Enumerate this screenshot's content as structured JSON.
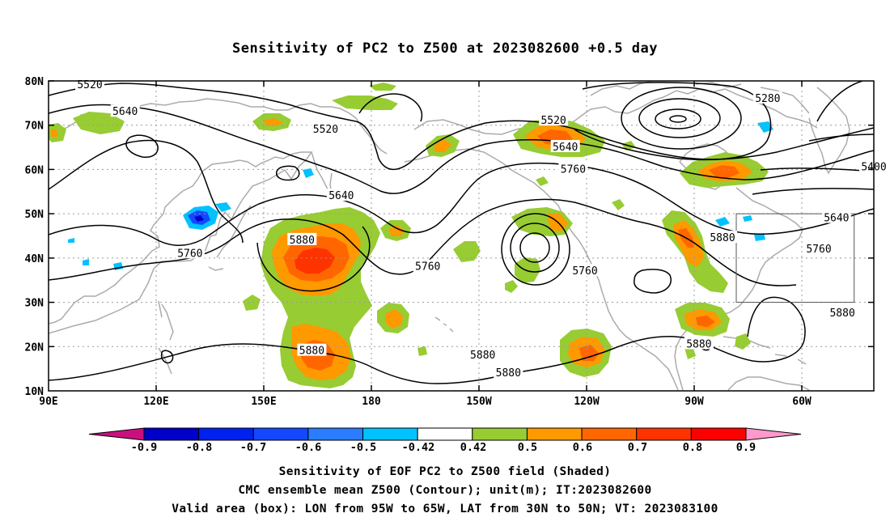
{
  "title": "Sensitivity of PC2 to Z500 at 2023082600 +0.5 day",
  "axes": {
    "lat_labels": [
      "80N",
      "70N",
      "60N",
      "50N",
      "40N",
      "30N",
      "20N",
      "10N"
    ],
    "lon_labels": [
      "90E",
      "120E",
      "150E",
      "180",
      "150W",
      "120W",
      "90W",
      "60W"
    ]
  },
  "contour_labels": [
    {
      "text": "5520",
      "lon": 100.5,
      "lat": 79.3
    },
    {
      "text": "5640",
      "lon": 109.5,
      "lat": 73.2
    },
    {
      "text": "5520",
      "lon": 160.5,
      "lat": 69.2
    },
    {
      "text": "5280",
      "lon": 273.0,
      "lat": 76.2
    },
    {
      "text": "5520",
      "lon": 218.5,
      "lat": 71.2
    },
    {
      "text": "5640",
      "lon": 221.5,
      "lat": 65.2
    },
    {
      "text": "5760",
      "lon": 223.5,
      "lat": 60.2
    },
    {
      "text": "5400",
      "lon": 300.0,
      "lat": 60.7
    },
    {
      "text": "5640",
      "lon": 164.5,
      "lat": 54.2
    },
    {
      "text": "5880",
      "lon": 154.5,
      "lat": 44.2
    },
    {
      "text": "5760",
      "lon": 126.0,
      "lat": 41.2
    },
    {
      "text": "5760",
      "lon": 186.5,
      "lat": 38.2
    },
    {
      "text": "5760",
      "lon": 226.5,
      "lat": 37.2
    },
    {
      "text": "5880",
      "lon": 261.5,
      "lat": 44.7
    },
    {
      "text": "5640",
      "lon": 290.5,
      "lat": 49.2
    },
    {
      "text": "5760",
      "lon": 286.0,
      "lat": 42.2
    },
    {
      "text": "5880",
      "lon": 292.0,
      "lat": 27.7
    },
    {
      "text": "5880",
      "lon": 255.5,
      "lat": 20.7
    },
    {
      "text": "5880",
      "lon": 200.5,
      "lat": 18.2
    },
    {
      "text": "5880",
      "lon": 207.0,
      "lat": 14.2
    },
    {
      "text": "5880",
      "lon": 157.0,
      "lat": 19.2
    }
  ],
  "colorbar": {
    "levels": [
      "-0.9",
      "-0.8",
      "-0.7",
      "-0.6",
      "-0.5",
      "-0.42",
      "0.42",
      "0.5",
      "0.6",
      "0.7",
      "0.8",
      "0.9"
    ],
    "colors": [
      "#c8107e",
      "#0000c8",
      "#0022ee",
      "#1448ff",
      "#2a7dff",
      "#00c2ff",
      "#ffffff",
      "#98cc33",
      "#ff9900",
      "#ff6600",
      "#ff3300",
      "#ff0000",
      "#ff99cc"
    ]
  },
  "valid_box": {
    "lon_min": 265,
    "lon_max": 295,
    "lat_min": 30,
    "lat_max": 50
  },
  "captions": [
    "Sensitivity of EOF PC2 to Z500 field (Shaded)",
    "CMC ensemble mean Z500 (Contour); unit(m); IT:2023082600",
    "Valid area (box): LON from 95W to 65W, LAT from 30N to 50N; VT: 2023083100"
  ]
}
